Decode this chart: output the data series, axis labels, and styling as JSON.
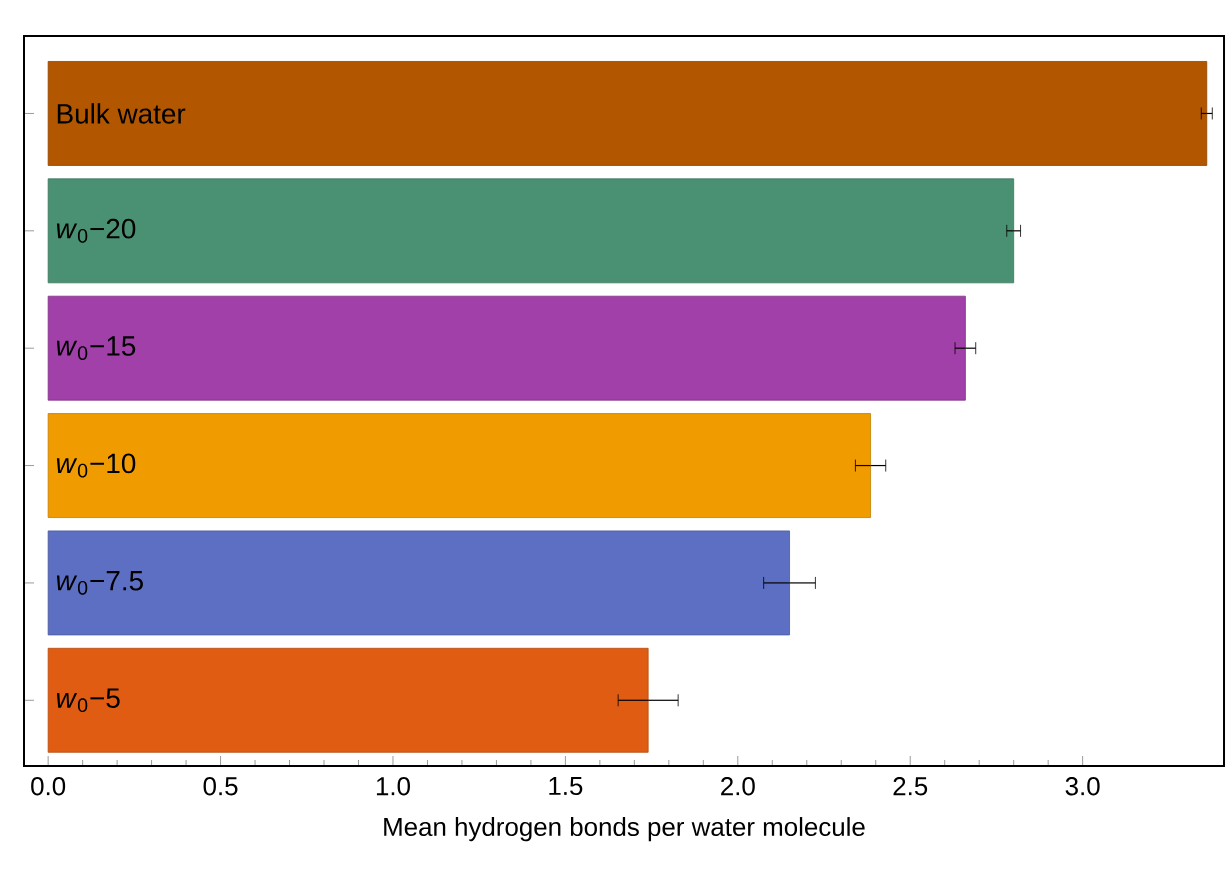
{
  "chart_data": {
    "type": "bar",
    "orientation": "horizontal",
    "xlabel": "Mean hydrogen bonds per water molecule",
    "categories": [
      "Bulk water",
      "*w*$_{0}$−20",
      "*w*$_{0}$−15",
      "*w*$_{0}$−10",
      "*w*$_{0}$−7.5",
      "*w*$_{0}$−5"
    ],
    "values": [
      3.36,
      2.8,
      2.66,
      2.385,
      2.15,
      1.74
    ],
    "errors": [
      0.016,
      0.02,
      0.03,
      0.044,
      0.075,
      0.087
    ],
    "colors": [
      "#b35600",
      "#4a9173",
      "#a040a8",
      "#f09c00",
      "#5c6fc2",
      "#e05c12"
    ],
    "xlim": [
      -0.07,
      3.41
    ],
    "xticks": [
      {
        "value": 0,
        "label": "0.0"
      },
      {
        "value": 0.5,
        "label": "0.5"
      },
      {
        "value": 1,
        "label": "1.0"
      },
      {
        "value": 1.5,
        "label": "1.5"
      },
      {
        "value": 2,
        "label": "2.0"
      },
      {
        "value": 2.5,
        "label": "2.5"
      },
      {
        "value": 3,
        "label": "3.0"
      }
    ],
    "grid": false
  }
}
